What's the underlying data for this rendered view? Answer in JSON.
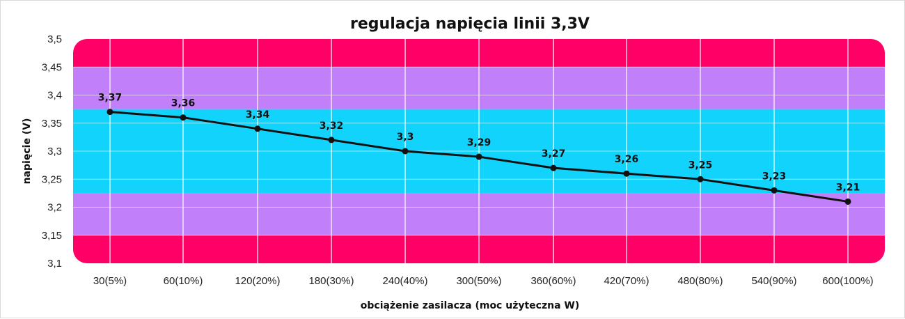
{
  "chart_data": {
    "type": "line",
    "title": "regulacja napięcia linii 3,3V",
    "xlabel": "obciążenie zasilacza (moc użyteczna W)",
    "ylabel": "napięcie (V)",
    "categories": [
      "30(5%)",
      "60(10%)",
      "120(20%)",
      "180(30%)",
      "240(40%)",
      "300(50%)",
      "360(60%)",
      "420(70%)",
      "480(80%)",
      "540(90%)",
      "600(100%)"
    ],
    "series": [
      {
        "values": [
          3.37,
          3.36,
          3.34,
          3.32,
          3.3,
          3.29,
          3.27,
          3.26,
          3.25,
          3.23,
          3.21
        ]
      }
    ],
    "data_labels": [
      "3,37",
      "3,36",
      "3,34",
      "3,32",
      "3,3",
      "3,29",
      "3,27",
      "3,26",
      "3,25",
      "3,23",
      "3,21"
    ],
    "yticks": [
      "3,1",
      "3,15",
      "3,2",
      "3,25",
      "3,3",
      "3,35",
      "3,4",
      "3,45",
      "3,5"
    ],
    "ytick_values": [
      3.1,
      3.15,
      3.2,
      3.25,
      3.3,
      3.35,
      3.4,
      3.45,
      3.5
    ],
    "ylim": [
      3.1,
      3.5
    ],
    "grid": true,
    "bands": [
      {
        "from": 3.1,
        "to": 3.15,
        "color": "#ff0066"
      },
      {
        "from": 3.15,
        "to": 3.225,
        "color": "#c27ffa"
      },
      {
        "from": 3.225,
        "to": 3.375,
        "color": "#11d3fb"
      },
      {
        "from": 3.375,
        "to": 3.45,
        "color": "#c27ffa"
      },
      {
        "from": 3.45,
        "to": 3.5,
        "color": "#ff0066"
      }
    ],
    "line_color": "#111111"
  }
}
